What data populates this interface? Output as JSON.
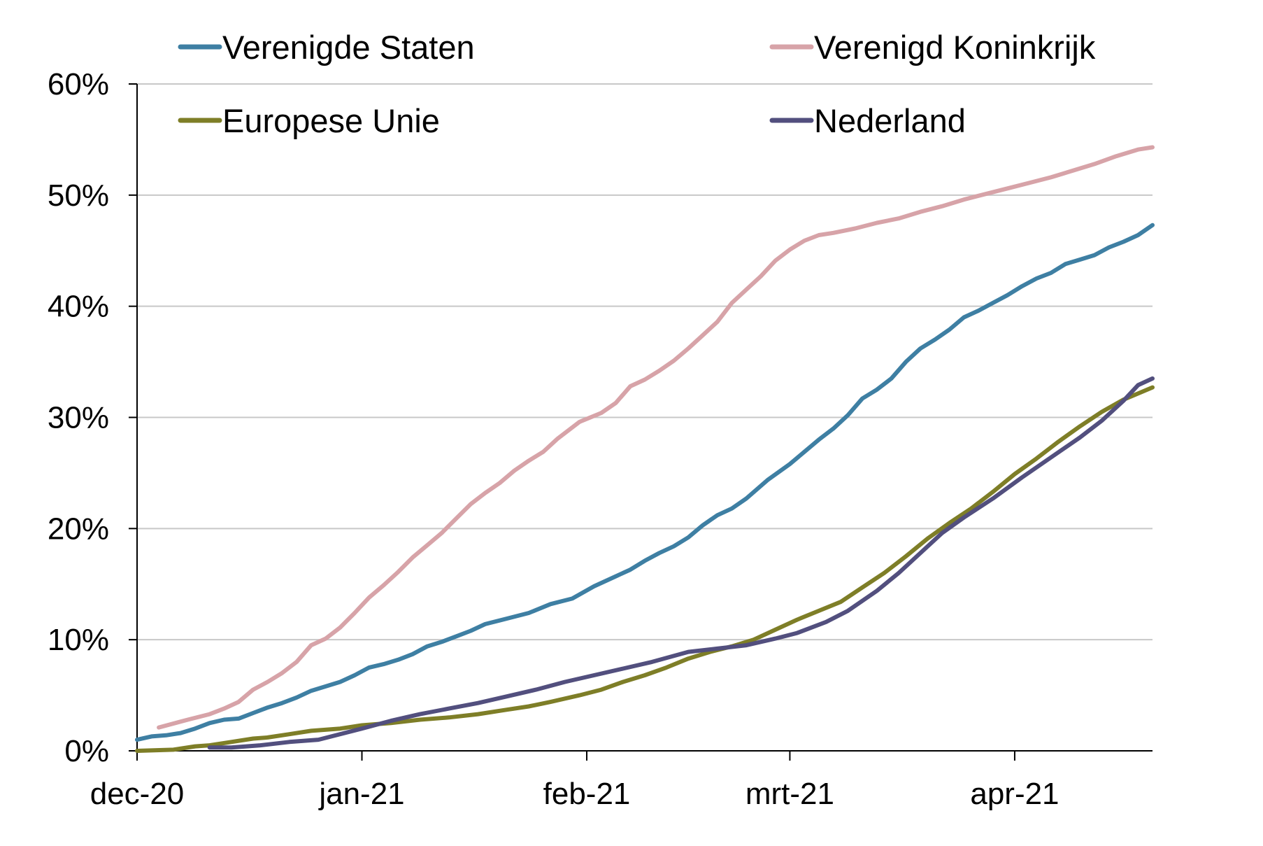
{
  "chart_data": {
    "type": "line",
    "title": "",
    "xlabel": "",
    "ylabel": "",
    "ylim": [
      0,
      60
    ],
    "y_ticks": [
      "0%",
      "10%",
      "20%",
      "30%",
      "40%",
      "50%",
      "60%"
    ],
    "x_ticks": [
      "dec-20",
      "jan-21",
      "feb-21",
      "mrt-21",
      "apr-21"
    ],
    "x_tick_dates": [
      "2020-12-01",
      "2021-01-01",
      "2021-02-01",
      "2021-03-01",
      "2021-04-01"
    ],
    "x_range": [
      "2020-12-01",
      "2021-04-20"
    ],
    "grid": "horizontal",
    "legend_position": "top",
    "series": [
      {
        "name": "Verenigde Staten",
        "color": "#3e7fa3",
        "points": [
          [
            "2020-12-01",
            1.0
          ],
          [
            "2020-12-03",
            1.3
          ],
          [
            "2020-12-05",
            1.4
          ],
          [
            "2020-12-07",
            1.6
          ],
          [
            "2020-12-09",
            2.0
          ],
          [
            "2020-12-11",
            2.5
          ],
          [
            "2020-12-13",
            2.8
          ],
          [
            "2020-12-15",
            2.9
          ],
          [
            "2020-12-17",
            3.4
          ],
          [
            "2020-12-19",
            3.9
          ],
          [
            "2020-12-21",
            4.3
          ],
          [
            "2020-12-23",
            4.8
          ],
          [
            "2020-12-25",
            5.4
          ],
          [
            "2020-12-27",
            5.8
          ],
          [
            "2020-12-29",
            6.2
          ],
          [
            "2020-12-31",
            6.8
          ],
          [
            "2021-01-02",
            7.5
          ],
          [
            "2021-01-04",
            7.8
          ],
          [
            "2021-01-06",
            8.2
          ],
          [
            "2021-01-08",
            8.7
          ],
          [
            "2021-01-10",
            9.4
          ],
          [
            "2021-01-12",
            9.8
          ],
          [
            "2021-01-14",
            10.3
          ],
          [
            "2021-01-16",
            10.8
          ],
          [
            "2021-01-18",
            11.4
          ],
          [
            "2021-01-21",
            11.9
          ],
          [
            "2021-01-24",
            12.4
          ],
          [
            "2021-01-27",
            13.2
          ],
          [
            "2021-01-30",
            13.7
          ],
          [
            "2021-02-02",
            14.8
          ],
          [
            "2021-02-05",
            15.7
          ],
          [
            "2021-02-07",
            16.3
          ],
          [
            "2021-02-09",
            17.1
          ],
          [
            "2021-02-11",
            17.8
          ],
          [
            "2021-02-13",
            18.4
          ],
          [
            "2021-02-15",
            19.2
          ],
          [
            "2021-02-17",
            20.3
          ],
          [
            "2021-02-19",
            21.2
          ],
          [
            "2021-02-21",
            21.8
          ],
          [
            "2021-02-23",
            22.7
          ],
          [
            "2021-02-26",
            24.4
          ],
          [
            "2021-03-01",
            25.8
          ],
          [
            "2021-03-03",
            26.9
          ],
          [
            "2021-03-05",
            28.0
          ],
          [
            "2021-03-07",
            29.0
          ],
          [
            "2021-03-09",
            30.2
          ],
          [
            "2021-03-11",
            31.7
          ],
          [
            "2021-03-13",
            32.5
          ],
          [
            "2021-03-15",
            33.5
          ],
          [
            "2021-03-17",
            35.0
          ],
          [
            "2021-03-19",
            36.2
          ],
          [
            "2021-03-21",
            37.0
          ],
          [
            "2021-03-23",
            37.9
          ],
          [
            "2021-03-25",
            39.0
          ],
          [
            "2021-03-27",
            39.6
          ],
          [
            "2021-03-29",
            40.3
          ],
          [
            "2021-03-31",
            41.0
          ],
          [
            "2021-04-02",
            41.8
          ],
          [
            "2021-04-04",
            42.5
          ],
          [
            "2021-04-06",
            43.0
          ],
          [
            "2021-04-08",
            43.8
          ],
          [
            "2021-04-10",
            44.2
          ],
          [
            "2021-04-12",
            44.6
          ],
          [
            "2021-04-14",
            45.3
          ],
          [
            "2021-04-16",
            45.8
          ],
          [
            "2021-04-18",
            46.4
          ],
          [
            "2021-04-20",
            47.3
          ]
        ]
      },
      {
        "name": "Verenigd Koninkrijk",
        "color": "#d7a3a8",
        "points": [
          [
            "2020-12-04",
            2.1
          ],
          [
            "2020-12-08",
            2.8
          ],
          [
            "2020-12-11",
            3.3
          ],
          [
            "2020-12-13",
            3.8
          ],
          [
            "2020-12-15",
            4.4
          ],
          [
            "2020-12-17",
            5.5
          ],
          [
            "2020-12-19",
            6.2
          ],
          [
            "2020-12-21",
            7.0
          ],
          [
            "2020-12-23",
            8.0
          ],
          [
            "2020-12-25",
            9.5
          ],
          [
            "2020-12-27",
            10.1
          ],
          [
            "2020-12-29",
            11.1
          ],
          [
            "2020-12-31",
            12.4
          ],
          [
            "2021-01-02",
            13.8
          ],
          [
            "2021-01-04",
            14.9
          ],
          [
            "2021-01-06",
            16.1
          ],
          [
            "2021-01-08",
            17.4
          ],
          [
            "2021-01-10",
            18.5
          ],
          [
            "2021-01-12",
            19.6
          ],
          [
            "2021-01-14",
            20.9
          ],
          [
            "2021-01-16",
            22.2
          ],
          [
            "2021-01-18",
            23.2
          ],
          [
            "2021-01-20",
            24.1
          ],
          [
            "2021-01-22",
            25.2
          ],
          [
            "2021-01-24",
            26.1
          ],
          [
            "2021-01-26",
            26.9
          ],
          [
            "2021-01-28",
            28.1
          ],
          [
            "2021-01-31",
            29.6
          ],
          [
            "2021-02-03",
            30.4
          ],
          [
            "2021-02-05",
            31.3
          ],
          [
            "2021-02-07",
            32.8
          ],
          [
            "2021-02-09",
            33.4
          ],
          [
            "2021-02-11",
            34.2
          ],
          [
            "2021-02-13",
            35.1
          ],
          [
            "2021-02-15",
            36.2
          ],
          [
            "2021-02-17",
            37.4
          ],
          [
            "2021-02-19",
            38.6
          ],
          [
            "2021-02-21",
            40.3
          ],
          [
            "2021-02-23",
            41.5
          ],
          [
            "2021-02-25",
            42.7
          ],
          [
            "2021-02-27",
            44.1
          ],
          [
            "2021-03-01",
            45.1
          ],
          [
            "2021-03-03",
            45.9
          ],
          [
            "2021-03-05",
            46.4
          ],
          [
            "2021-03-07",
            46.6
          ],
          [
            "2021-03-10",
            47.0
          ],
          [
            "2021-03-13",
            47.5
          ],
          [
            "2021-03-16",
            47.9
          ],
          [
            "2021-03-19",
            48.5
          ],
          [
            "2021-03-22",
            49.0
          ],
          [
            "2021-03-25",
            49.6
          ],
          [
            "2021-03-28",
            50.1
          ],
          [
            "2021-03-31",
            50.6
          ],
          [
            "2021-04-03",
            51.1
          ],
          [
            "2021-04-06",
            51.6
          ],
          [
            "2021-04-09",
            52.2
          ],
          [
            "2021-04-12",
            52.8
          ],
          [
            "2021-04-15",
            53.5
          ],
          [
            "2021-04-18",
            54.1
          ],
          [
            "2021-04-20",
            54.3
          ]
        ]
      },
      {
        "name": "Europese Unie",
        "color": "#7e7e27",
        "points": [
          [
            "2020-12-01",
            0.0
          ],
          [
            "2020-12-06",
            0.1
          ],
          [
            "2020-12-09",
            0.4
          ],
          [
            "2020-12-11",
            0.5
          ],
          [
            "2020-12-14",
            0.8
          ],
          [
            "2020-12-17",
            1.1
          ],
          [
            "2020-12-19",
            1.2
          ],
          [
            "2020-12-22",
            1.5
          ],
          [
            "2020-12-25",
            1.8
          ],
          [
            "2020-12-29",
            2.0
          ],
          [
            "2021-01-01",
            2.3
          ],
          [
            "2021-01-05",
            2.5
          ],
          [
            "2021-01-09",
            2.8
          ],
          [
            "2021-01-13",
            3.0
          ],
          [
            "2021-01-17",
            3.3
          ],
          [
            "2021-01-21",
            3.7
          ],
          [
            "2021-01-24",
            4.0
          ],
          [
            "2021-01-27",
            4.4
          ],
          [
            "2021-01-31",
            5.0
          ],
          [
            "2021-02-03",
            5.5
          ],
          [
            "2021-02-06",
            6.2
          ],
          [
            "2021-02-09",
            6.8
          ],
          [
            "2021-02-12",
            7.5
          ],
          [
            "2021-02-15",
            8.3
          ],
          [
            "2021-02-18",
            8.9
          ],
          [
            "2021-02-21",
            9.4
          ],
          [
            "2021-02-24",
            10.0
          ],
          [
            "2021-02-27",
            10.9
          ],
          [
            "2021-03-02",
            11.8
          ],
          [
            "2021-03-05",
            12.6
          ],
          [
            "2021-03-08",
            13.4
          ],
          [
            "2021-03-11",
            14.7
          ],
          [
            "2021-03-14",
            16.0
          ],
          [
            "2021-03-17",
            17.5
          ],
          [
            "2021-03-20",
            19.1
          ],
          [
            "2021-03-23",
            20.5
          ],
          [
            "2021-03-26",
            21.8
          ],
          [
            "2021-03-29",
            23.3
          ],
          [
            "2021-04-01",
            24.9
          ],
          [
            "2021-04-04",
            26.3
          ],
          [
            "2021-04-07",
            27.8
          ],
          [
            "2021-04-10",
            29.2
          ],
          [
            "2021-04-13",
            30.5
          ],
          [
            "2021-04-16",
            31.6
          ],
          [
            "2021-04-20",
            32.7
          ]
        ]
      },
      {
        "name": "Nederland",
        "color": "#524f7e",
        "points": [
          [
            "2020-12-11",
            0.3
          ],
          [
            "2020-12-14",
            0.3
          ],
          [
            "2020-12-18",
            0.5
          ],
          [
            "2020-12-22",
            0.8
          ],
          [
            "2020-12-26",
            1.0
          ],
          [
            "2021-01-01",
            2.0
          ],
          [
            "2021-01-05",
            2.7
          ],
          [
            "2021-01-09",
            3.3
          ],
          [
            "2021-01-13",
            3.8
          ],
          [
            "2021-01-17",
            4.3
          ],
          [
            "2021-01-21",
            4.9
          ],
          [
            "2021-01-25",
            5.5
          ],
          [
            "2021-01-29",
            6.2
          ],
          [
            "2021-02-02",
            6.8
          ],
          [
            "2021-02-06",
            7.4
          ],
          [
            "2021-02-10",
            8.0
          ],
          [
            "2021-02-15",
            8.9
          ],
          [
            "2021-02-19",
            9.2
          ],
          [
            "2021-02-23",
            9.5
          ],
          [
            "2021-02-27",
            10.1
          ],
          [
            "2021-03-02",
            10.6
          ],
          [
            "2021-03-06",
            11.6
          ],
          [
            "2021-03-09",
            12.6
          ],
          [
            "2021-03-13",
            14.4
          ],
          [
            "2021-03-16",
            16.0
          ],
          [
            "2021-03-19",
            17.8
          ],
          [
            "2021-03-22",
            19.6
          ],
          [
            "2021-03-25",
            21.0
          ],
          [
            "2021-03-29",
            22.7
          ],
          [
            "2021-04-02",
            24.6
          ],
          [
            "2021-04-06",
            26.4
          ],
          [
            "2021-04-10",
            28.2
          ],
          [
            "2021-04-13",
            29.7
          ],
          [
            "2021-04-16",
            31.5
          ],
          [
            "2021-04-18",
            32.9
          ],
          [
            "2021-04-20",
            33.5
          ]
        ]
      }
    ]
  }
}
